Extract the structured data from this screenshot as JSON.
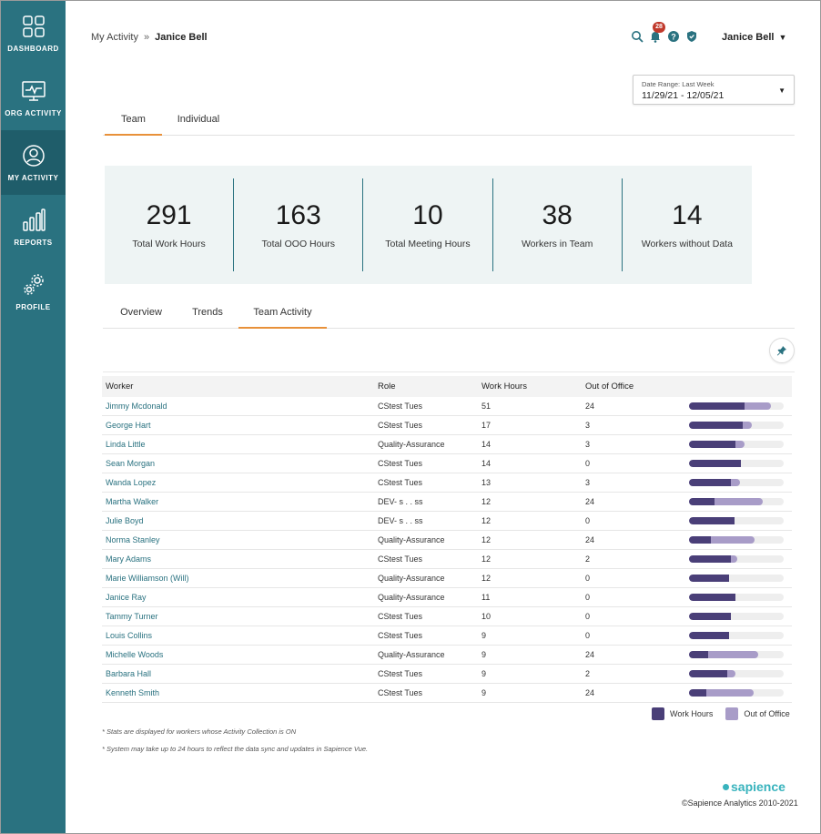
{
  "sidebar": {
    "items": [
      {
        "label": "DASHBOARD",
        "icon": "dashboard-icon"
      },
      {
        "label": "ORG ACTIVITY",
        "icon": "monitor-icon"
      },
      {
        "label": "MY ACTIVITY",
        "icon": "user-icon"
      },
      {
        "label": "REPORTS",
        "icon": "bar-chart-icon"
      },
      {
        "label": "PROFILE",
        "icon": "gears-icon"
      }
    ]
  },
  "header": {
    "breadcrumb_root": "My Activity",
    "breadcrumb_sep": "»",
    "breadcrumb_current": "Janice Bell",
    "notification_count": "28",
    "user_name": "Janice Bell",
    "user_caret": "▼"
  },
  "date_range": {
    "label": "Date Range: Last Week",
    "value": "11/29/21 - 12/05/21",
    "caret": "▼"
  },
  "top_tabs": [
    {
      "label": "Team",
      "active": true
    },
    {
      "label": "Individual",
      "active": false
    }
  ],
  "stats": [
    {
      "value": "291",
      "label": "Total Work Hours"
    },
    {
      "value": "163",
      "label": "Total OOO Hours"
    },
    {
      "value": "10",
      "label": "Total Meeting Hours"
    },
    {
      "value": "38",
      "label": "Workers in Team"
    },
    {
      "value": "14",
      "label": "Workers without Data"
    }
  ],
  "sub_tabs": [
    {
      "label": "Overview",
      "active": false
    },
    {
      "label": "Trends",
      "active": false
    },
    {
      "label": "Team Activity",
      "active": true
    }
  ],
  "table": {
    "headers": {
      "worker": "Worker",
      "role": "Role",
      "work_hours": "Work Hours",
      "ooo": "Out of Office"
    },
    "rows": [
      {
        "worker": "Jimmy Mcdonald",
        "role": "CStest Tues",
        "work_hours": "51",
        "ooo": "24",
        "work_frac": 0.59,
        "ooo_frac": 0.28
      },
      {
        "worker": "George Hart",
        "role": "CStest Tues",
        "work_hours": "17",
        "ooo": "3",
        "work_frac": 0.57,
        "ooo_frac": 0.1
      },
      {
        "worker": "Linda Little",
        "role": "Quality-Assurance",
        "work_hours": "14",
        "ooo": "3",
        "work_frac": 0.49,
        "ooo_frac": 0.1
      },
      {
        "worker": "Sean Morgan",
        "role": "CStest Tues",
        "work_hours": "14",
        "ooo": "0",
        "work_frac": 0.55,
        "ooo_frac": 0.0
      },
      {
        "worker": "Wanda Lopez",
        "role": "CStest Tues",
        "work_hours": "13",
        "ooo": "3",
        "work_frac": 0.44,
        "ooo_frac": 0.1
      },
      {
        "worker": "Martha Walker",
        "role": "DEV- s . . ss",
        "work_hours": "12",
        "ooo": "24",
        "work_frac": 0.27,
        "ooo_frac": 0.51
      },
      {
        "worker": "Julie Boyd",
        "role": "DEV- s . . ss",
        "work_hours": "12",
        "ooo": "0",
        "work_frac": 0.48,
        "ooo_frac": 0.0
      },
      {
        "worker": "Norma Stanley",
        "role": "Quality-Assurance",
        "work_hours": "12",
        "ooo": "24",
        "work_frac": 0.23,
        "ooo_frac": 0.46
      },
      {
        "worker": "Mary Adams",
        "role": "CStest Tues",
        "work_hours": "12",
        "ooo": "2",
        "work_frac": 0.44,
        "ooo_frac": 0.07
      },
      {
        "worker": "Marie Williamson (Will)",
        "role": "Quality-Assurance",
        "work_hours": "12",
        "ooo": "0",
        "work_frac": 0.42,
        "ooo_frac": 0.0
      },
      {
        "worker": "Janice Ray",
        "role": "Quality-Assurance",
        "work_hours": "11",
        "ooo": "0",
        "work_frac": 0.49,
        "ooo_frac": 0.0
      },
      {
        "worker": "Tammy Turner",
        "role": "CStest Tues",
        "work_hours": "10",
        "ooo": "0",
        "work_frac": 0.44,
        "ooo_frac": 0.0
      },
      {
        "worker": "Louis Collins",
        "role": "CStest Tues",
        "work_hours": "9",
        "ooo": "0",
        "work_frac": 0.42,
        "ooo_frac": 0.0
      },
      {
        "worker": "Michelle Woods",
        "role": "Quality-Assurance",
        "work_hours": "9",
        "ooo": "24",
        "work_frac": 0.2,
        "ooo_frac": 0.53
      },
      {
        "worker": "Barbara Hall",
        "role": "CStest Tues",
        "work_hours": "9",
        "ooo": "2",
        "work_frac": 0.4,
        "ooo_frac": 0.09
      },
      {
        "worker": "Kenneth Smith",
        "role": "CStest Tues",
        "work_hours": "9",
        "ooo": "24",
        "work_frac": 0.18,
        "ooo_frac": 0.5
      }
    ]
  },
  "legend": {
    "work": "Work Hours",
    "ooo": "Out of Office"
  },
  "notes": [
    "* Stats are displayed for workers whose Activity Collection is ON",
    "* System may take up to 24 hours to reflect the data sync and updates in Sapience Vue."
  ],
  "footer": {
    "brand": "sapience",
    "copyright": "©Sapience Analytics 2010-2021"
  },
  "colors": {
    "sidebar": "#2a7280",
    "accent": "#e8913a",
    "work_bar": "#4a3f78",
    "ooo_bar": "#a89cc8",
    "link": "#2a7280"
  }
}
